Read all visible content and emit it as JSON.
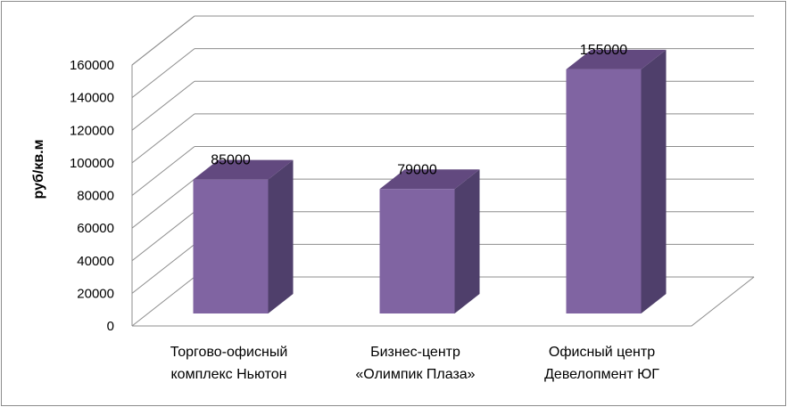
{
  "chart_data": {
    "type": "bar",
    "style": "3d-column",
    "categories": [
      [
        "Торгово-офисный",
        "комплекс Ньютон"
      ],
      [
        "Бизнес-центр",
        "«Олимпик Плаза»"
      ],
      [
        "Офисный центр",
        "Девелопмент ЮГ"
      ]
    ],
    "values": [
      85000,
      79000,
      155000
    ],
    "data_labels": [
      "85000",
      "79000",
      "155000"
    ],
    "ylabel": "руб/кв.м",
    "ylim": [
      0,
      160000
    ],
    "yticks": [
      "0",
      "20000",
      "40000",
      "60000",
      "80000",
      "100000",
      "120000",
      "140000",
      "160000"
    ],
    "grid": true,
    "legend": "none",
    "colors": {
      "bar_front": "#8064a2",
      "bar_side": "#4f3f6b",
      "bar_top": "#62497f",
      "grid": "#8c8c8c"
    }
  }
}
